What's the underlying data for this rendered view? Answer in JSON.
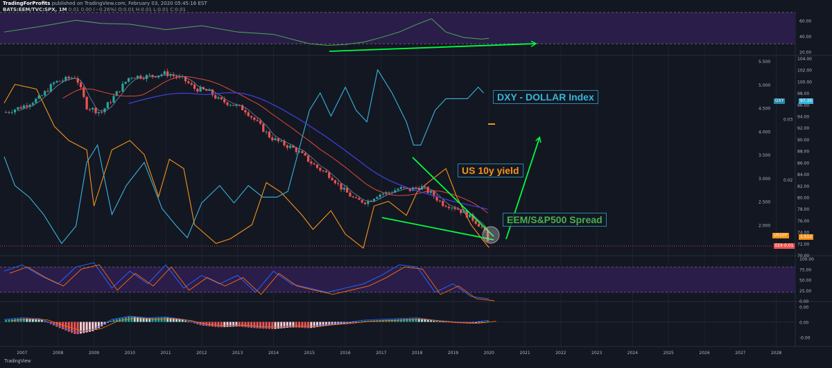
{
  "header": {
    "publisher": "TradingForProfits",
    "published_text": "published on TradingView.com, February 03, 2020 05:45:16 EST",
    "symbol": "BATS:EEM/TVC:SPX, 1M",
    "ohlc": "0.01 0.00 (−0.26%) O:0.01 H:0.01 L:0.01 C:0.01"
  },
  "annotations": {
    "dxy": "DXY - DOLLAR Index",
    "us10y": "US 10y yield",
    "eem": "EEM/S&P500 Spread"
  },
  "price_tags": {
    "dxy": "DXY",
    "dxy_value": "97.35",
    "us10y": "US10Y",
    "eem": "EEM",
    "eem_value": "0.01",
    "us10y_value": "1.512"
  },
  "brand": "TradingView",
  "colors": {
    "background": "#131722",
    "rsi_band": "#2a1d4a",
    "green_line": "#00ff41",
    "dxy": "#39b5dc",
    "us10y": "#f7931a",
    "sma_slow": "#3f3fd6",
    "sma_fast": "#e04a3a",
    "candle_up": "#26a69a",
    "candle_down": "#ef5350"
  },
  "chart_data": [
    {
      "type": "line",
      "panel": "top-oscillator",
      "y_ticks": [
        "60.00",
        "40.00",
        "20.00"
      ],
      "ylim": [
        15,
        70
      ],
      "band": [
        30,
        70
      ],
      "x": [
        2006.5,
        2007.5,
        2008.5,
        2009.2,
        2010,
        2011,
        2012,
        2013,
        2014,
        2015,
        2015.5,
        2016,
        2016.5,
        2017,
        2017.5,
        2018,
        2018.4,
        2018.8,
        2019.3,
        2019.8,
        2020
      ],
      "values": [
        45,
        52,
        60,
        56,
        55,
        48,
        53,
        45,
        42,
        30,
        28,
        29,
        32,
        38,
        45,
        55,
        62,
        45,
        38,
        36,
        37
      ]
    },
    {
      "type": "candlestick",
      "panel": "main",
      "series": [
        {
          "name": "EEM/S&P500 Spread",
          "axis": "spread",
          "y_ticks": [
            "0.03",
            "0.02"
          ],
          "ylim": [
            0.0075,
            0.04
          ],
          "x": [
            2006.5,
            2007,
            2007.5,
            2007.9,
            2008.5,
            2008.8,
            2009.2,
            2009.6,
            2010,
            2010.5,
            2011,
            2011.5,
            2011.8,
            2012.2,
            2012.5,
            2012.8,
            2013.2,
            2013.6,
            2013.9,
            2014.2,
            2014.6,
            2014.9,
            2015.2,
            2015.6,
            2015.9,
            2016.3,
            2016.6,
            2016.9,
            2017.2,
            2017.5,
            2017.8,
            2018.1,
            2018.4,
            2018.7,
            2019,
            2019.3,
            2019.6,
            2019.85,
            2020
          ],
          "values": [
            0.031,
            0.032,
            0.0335,
            0.036,
            0.037,
            0.032,
            0.031,
            0.034,
            0.037,
            0.037,
            0.0375,
            0.0365,
            0.035,
            0.0345,
            0.033,
            0.0325,
            0.0315,
            0.029,
            0.027,
            0.026,
            0.025,
            0.0235,
            0.022,
            0.0205,
            0.0185,
            0.0165,
            0.0163,
            0.0175,
            0.0178,
            0.0185,
            0.0183,
            0.0188,
            0.0176,
            0.016,
            0.0155,
            0.0145,
            0.0132,
            0.0118,
            0.009
          ]
        },
        {
          "name": "DXY",
          "axis": "dxy",
          "y_ticks": [
            "104.00",
            "102.00",
            "100.00",
            "98.00",
            "96.00",
            "94.00",
            "92.00",
            "90.00",
            "88.00",
            "86.00",
            "84.00",
            "82.00",
            "80.00",
            "78.00",
            "76.00",
            "74.00",
            "72.00",
            "70.00"
          ],
          "ylim": [
            70,
            104
          ],
          "x": [
            2006.5,
            2006.8,
            2007.2,
            2007.6,
            2008.1,
            2008.5,
            2008.8,
            2009.1,
            2009.5,
            2009.9,
            2010.4,
            2010.9,
            2011.3,
            2011.6,
            2012.0,
            2012.5,
            2012.9,
            2013.3,
            2013.7,
            2014.1,
            2014.4,
            2014.7,
            2015.0,
            2015.3,
            2015.6,
            2016.0,
            2016.3,
            2016.6,
            2016.9,
            2017.3,
            2017.7,
            2017.9,
            2018.1,
            2018.5,
            2018.8,
            2019.1,
            2019.4,
            2019.7,
            2019.85
          ],
          "values": [
            87,
            82,
            80,
            77,
            72,
            75,
            86,
            89,
            77,
            82,
            86,
            78,
            75,
            73,
            79,
            82,
            79,
            82,
            80,
            80,
            81,
            88,
            95,
            98,
            94,
            99,
            95,
            93,
            102,
            98,
            93,
            89,
            89,
            95,
            97,
            97,
            97,
            99,
            98
          ]
        },
        {
          "name": "US 10y yield",
          "axis": "yield",
          "y_ticks": [
            "5.500",
            "5.000",
            "4.500",
            "4.000",
            "3.500",
            "3.000",
            "2.500",
            "2.000",
            "1.512"
          ],
          "ylim": [
            1.5,
            5.5
          ],
          "x": [
            2006.5,
            2006.8,
            2007.4,
            2007.9,
            2008.3,
            2008.8,
            2009.0,
            2009.5,
            2010.0,
            2010.4,
            2010.8,
            2011.1,
            2011.5,
            2011.8,
            2012.4,
            2012.8,
            2013.4,
            2013.8,
            2014.2,
            2014.8,
            2015.1,
            2015.6,
            2016.0,
            2016.5,
            2016.8,
            2017.2,
            2017.7,
            2018.0,
            2018.3,
            2018.8,
            2019.1,
            2019.5,
            2019.8,
            2020.0
          ],
          "values": [
            4.6,
            5.0,
            4.9,
            4.1,
            3.8,
            3.6,
            2.4,
            3.6,
            3.8,
            3.5,
            2.6,
            3.4,
            3.2,
            2.0,
            1.6,
            1.7,
            2.0,
            2.9,
            2.7,
            2.2,
            1.9,
            2.3,
            1.8,
            1.5,
            2.4,
            2.5,
            2.2,
            2.7,
            2.9,
            3.2,
            2.6,
            2.0,
            1.7,
            1.512
          ]
        }
      ]
    },
    {
      "type": "line",
      "panel": "stochastic",
      "y_ticks": [
        "100.00",
        "75.00",
        "50.00",
        "25.00",
        "0.00"
      ],
      "ylim": [
        0,
        100
      ],
      "band": [
        20,
        80
      ],
      "x": [
        2006.5,
        2007,
        2007.5,
        2008,
        2008.5,
        2009,
        2009.5,
        2010,
        2010.5,
        2011,
        2011.5,
        2012,
        2012.5,
        2013,
        2013.5,
        2014,
        2014.5,
        2015,
        2015.5,
        2016,
        2016.5,
        2017,
        2017.5,
        2018,
        2018.5,
        2019,
        2019.5,
        2020
      ],
      "values": [
        70,
        85,
        60,
        40,
        80,
        90,
        30,
        70,
        40,
        85,
        30,
        60,
        40,
        60,
        20,
        70,
        40,
        30,
        20,
        30,
        40,
        60,
        85,
        80,
        20,
        40,
        10,
        5
      ]
    },
    {
      "type": "bar",
      "panel": "macd",
      "y_ticks": [
        "0.00",
        "0.00",
        "-0.00"
      ],
      "ylim": [
        -1,
        1
      ],
      "x": [
        2006.5,
        2007,
        2007.5,
        2008,
        2008.5,
        2009,
        2009.5,
        2010,
        2010.5,
        2011,
        2011.5,
        2012,
        2012.5,
        2013,
        2013.5,
        2014,
        2014.5,
        2015,
        2015.5,
        2016,
        2016.5,
        2017,
        2017.5,
        2018,
        2018.5,
        2019,
        2019.5,
        2020
      ],
      "values": [
        0.1,
        0.2,
        0.15,
        -0.3,
        -0.7,
        -0.5,
        0.1,
        0.3,
        0.2,
        0.25,
        0.1,
        -0.2,
        -0.3,
        -0.25,
        -0.35,
        -0.4,
        -0.3,
        -0.35,
        -0.2,
        -0.1,
        0.05,
        0.1,
        0.15,
        0.2,
        0.05,
        -0.05,
        -0.1,
        0.05
      ]
    },
    {
      "type": "axis",
      "x_tick_labels": [
        "2007",
        "2008",
        "2009",
        "2010",
        "2011",
        "2012",
        "2013",
        "2014",
        "2015",
        "2016",
        "2017",
        "2018",
        "2019",
        "2020",
        "2021",
        "2022",
        "2023",
        "2024",
        "2025",
        "2026",
        "2027",
        "2028"
      ],
      "xlim": [
        2006.5,
        2028.2
      ]
    }
  ]
}
